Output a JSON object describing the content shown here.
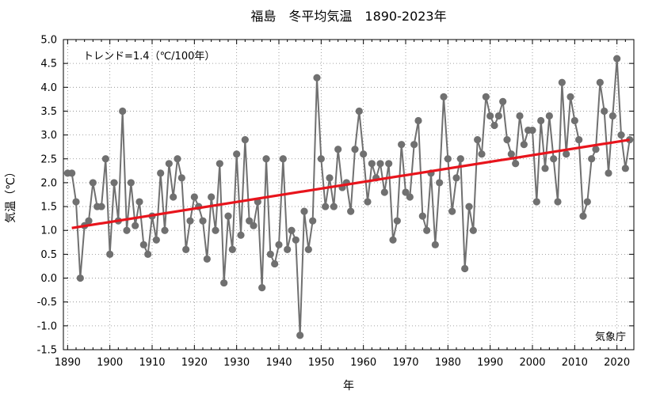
{
  "chart_data": {
    "type": "line",
    "title": "福島　冬平均気温　1890-2023年",
    "xlabel": "年",
    "ylabel": "気温（℃）",
    "trend_label": "トレンド=1.4（℃/100年）",
    "source": "気象庁",
    "xlim": [
      1889,
      2024
    ],
    "ylim": [
      -1.5,
      5.0
    ],
    "x_ticks": [
      1890,
      1900,
      1910,
      1920,
      1930,
      1940,
      1950,
      1960,
      1970,
      1980,
      1990,
      2000,
      2010,
      2020
    ],
    "y_ticks": [
      "5.0",
      "4.5",
      "4.0",
      "3.5",
      "3.0",
      "2.5",
      "2.0",
      "1.5",
      "1.0",
      "0.5",
      "0.0",
      "-0.5",
      "-1.0",
      "-1.5"
    ],
    "grid": "dotted",
    "series_color": "#707070",
    "trend_color": "#e8141c",
    "trend": {
      "x": [
        1891,
        2023
      ],
      "y": [
        1.05,
        2.9
      ]
    },
    "series": [
      {
        "x": [
          1890,
          1891,
          1892,
          1893,
          1894,
          1895,
          1896,
          1897,
          1898,
          1899,
          1900,
          1901,
          1902,
          1903,
          1904,
          1905,
          1906,
          1907,
          1908,
          1909,
          1910,
          1911,
          1912,
          1913,
          1914,
          1915,
          1916,
          1917,
          1918,
          1919,
          1920,
          1921,
          1922,
          1923,
          1924,
          1925,
          1926,
          1927,
          1928,
          1929,
          1930,
          1931,
          1932,
          1933,
          1934,
          1935,
          1936,
          1937,
          1938,
          1939,
          1940,
          1941,
          1942,
          1943,
          1944,
          1945,
          1946,
          1947,
          1948,
          1949,
          1950,
          1951,
          1952,
          1953,
          1954,
          1955,
          1956,
          1957,
          1958,
          1959,
          1960,
          1961,
          1962,
          1963,
          1964,
          1965,
          1966,
          1967,
          1968,
          1969,
          1970,
          1971,
          1972,
          1973,
          1974,
          1975,
          1976,
          1977,
          1978,
          1979,
          1980,
          1981,
          1982,
          1983,
          1984,
          1985,
          1986,
          1987,
          1988,
          1989,
          1990,
          1991,
          1992,
          1993,
          1994,
          1995,
          1996,
          1997,
          1998,
          1999,
          2000,
          2001,
          2002,
          2003,
          2004,
          2005,
          2006,
          2007,
          2008,
          2009,
          2010,
          2011,
          2012,
          2013,
          2014,
          2015,
          2016,
          2017,
          2018,
          2019,
          2020,
          2021,
          2022,
          2023
        ],
        "values": [
          2.2,
          2.2,
          1.6,
          0.0,
          1.1,
          1.2,
          2.0,
          1.5,
          1.5,
          2.5,
          0.5,
          2.0,
          1.2,
          3.5,
          1.0,
          2.0,
          1.1,
          1.6,
          0.7,
          0.5,
          1.3,
          0.8,
          2.2,
          1.0,
          2.4,
          1.7,
          2.5,
          2.1,
          0.6,
          1.2,
          1.7,
          1.5,
          1.2,
          0.4,
          1.7,
          1.0,
          2.4,
          -0.1,
          1.3,
          0.6,
          2.6,
          0.9,
          2.9,
          1.2,
          1.1,
          1.6,
          -0.2,
          2.5,
          0.5,
          0.3,
          0.7,
          2.5,
          0.6,
          1.0,
          0.8,
          -1.2,
          1.4,
          0.6,
          1.2,
          4.2,
          2.5,
          1.5,
          2.1,
          1.5,
          2.7,
          1.9,
          2.0,
          1.4,
          2.7,
          3.5,
          2.6,
          1.6,
          2.4,
          2.1,
          2.4,
          1.8,
          2.4,
          0.8,
          1.2,
          2.8,
          1.8,
          1.7,
          2.8,
          3.3,
          1.3,
          1.0,
          2.2,
          0.7,
          2.0,
          3.8,
          2.5,
          1.4,
          2.1,
          2.5,
          0.2,
          1.5,
          1.0,
          2.9,
          2.6,
          3.8,
          3.4,
          3.2,
          3.4,
          3.7,
          2.9,
          2.6,
          2.4,
          3.4,
          2.8,
          3.1,
          3.1,
          1.6,
          3.3,
          2.3,
          3.4,
          2.5,
          1.6,
          4.1,
          2.6,
          3.8,
          3.3,
          2.9,
          1.3,
          1.6,
          2.5,
          2.7,
          4.1,
          3.5,
          2.2,
          3.4,
          4.6,
          3.0,
          2.3,
          2.9
        ]
      }
    ]
  }
}
